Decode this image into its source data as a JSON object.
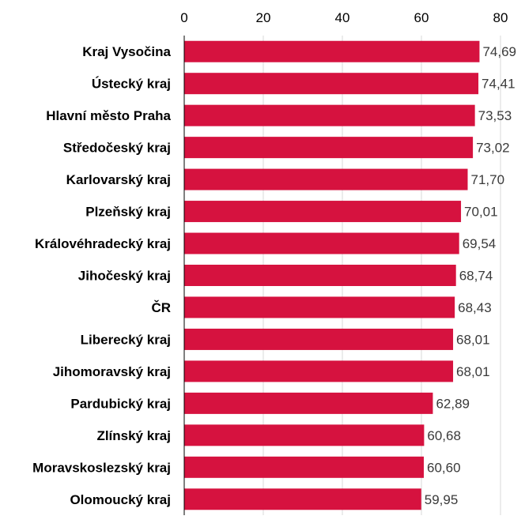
{
  "chart_data": {
    "type": "bar",
    "orientation": "horizontal",
    "categories": [
      "Kraj Vysočina",
      "Ústecký kraj",
      "Hlavní město Praha",
      "Středočeský kraj",
      "Karlovarský kraj",
      "Plzeňský kraj",
      "Královéhradecký kraj",
      "Jihočeský kraj",
      "ČR",
      "Liberecký kraj",
      "Jihomoravský kraj",
      "Pardubický kraj",
      "Zlínský kraj",
      "Moravskoslezský kraj",
      "Olomoucký kraj"
    ],
    "values": [
      74.69,
      74.41,
      73.53,
      73.02,
      71.7,
      70.01,
      69.54,
      68.74,
      68.43,
      68.01,
      68.01,
      62.89,
      60.68,
      60.6,
      59.95
    ],
    "value_labels": [
      "74,69",
      "74,41",
      "73,53",
      "73,02",
      "71,70",
      "70,01",
      "69,54",
      "68,74",
      "68,43",
      "68,01",
      "68,01",
      "62,89",
      "60,68",
      "60,60",
      "59,95"
    ],
    "x_ticks": [
      0,
      20,
      40,
      60,
      80
    ],
    "x_tick_labels": [
      "0",
      "20",
      "40",
      "60",
      "80"
    ],
    "xlim": [
      0,
      80
    ],
    "axis_position": "top",
    "grid": true,
    "legend": "none",
    "bar_color": "#D6123F",
    "grid_color": "#D9D9D9",
    "title": "",
    "xlabel": "",
    "ylabel": ""
  }
}
